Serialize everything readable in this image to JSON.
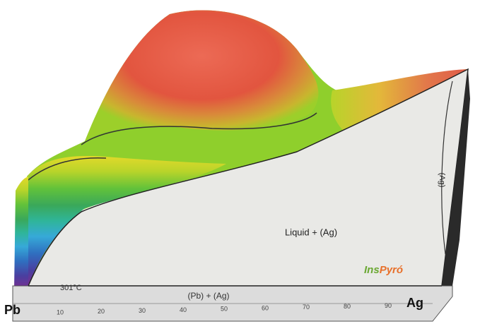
{
  "labels": {
    "liquid_region": "Liquid + (Ag)",
    "eutectic_temperature": "301°C",
    "solid_region": "(Pb) + (Ag)",
    "left_element": "Pb",
    "right_element": "Ag",
    "ag_phase": "(Ag)"
  },
  "logo": {
    "first": "Ins",
    "second": "Pyró"
  },
  "axis_ticks": [
    10,
    20,
    30,
    40,
    50,
    60,
    70,
    80,
    90
  ]
}
